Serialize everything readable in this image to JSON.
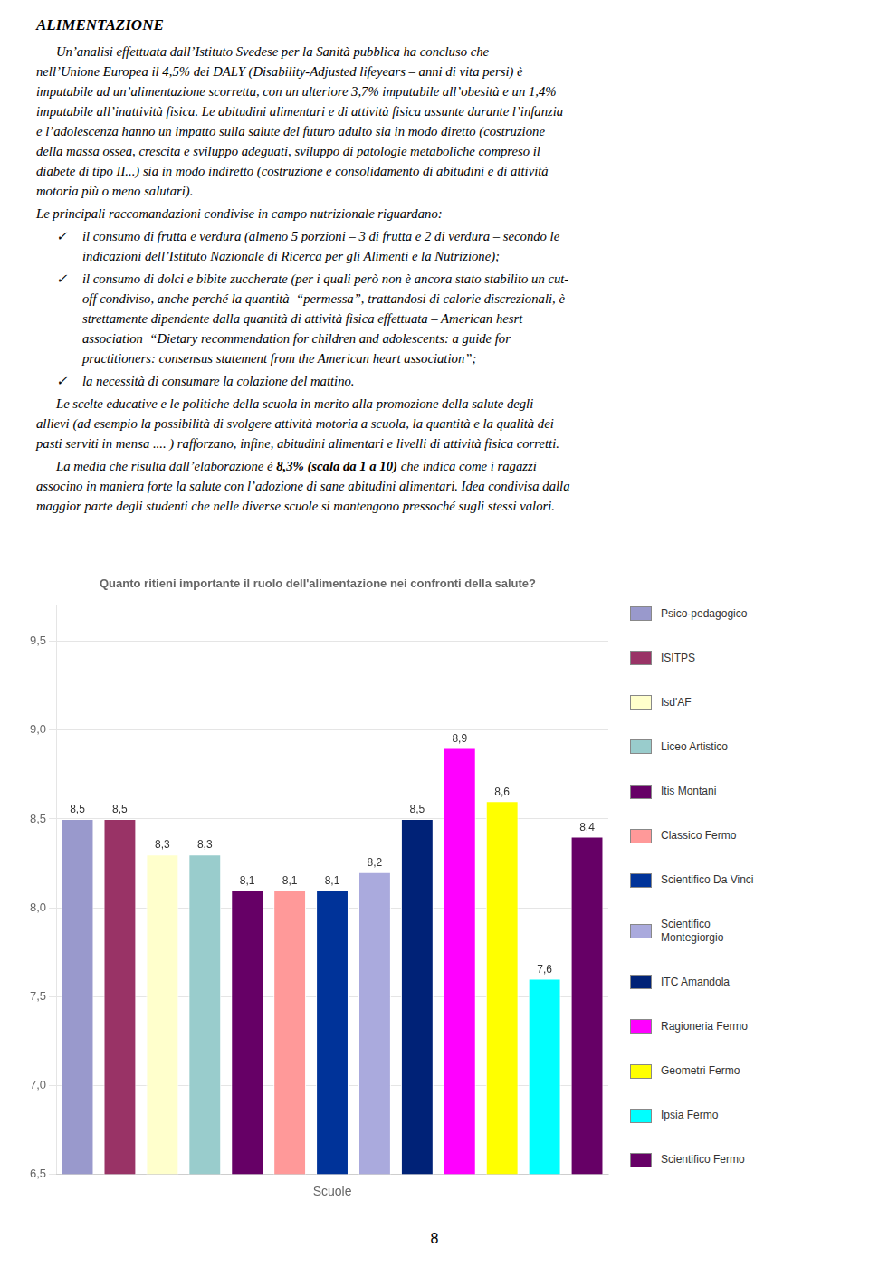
{
  "chart_data": {
    "type": "bar",
    "title": "Quanto ritieni importante il ruolo dell'alimentazione nei confronti della salute?",
    "xlabel": "Scuole",
    "categories": [
      "Psico-pedagogico",
      "ISITPS",
      "Isd'AF",
      "Liceo Artistico",
      "Itis Montani",
      "Classico Fermo",
      "Scientifico Da Vinci",
      "Scientifico\nMontegiorgio",
      "ITC Amandola",
      "Ragioneria Fermo",
      "Geometri Fermo",
      "Ipsia Fermo",
      "Scientifico Fermo"
    ],
    "values": [
      8.5,
      8.5,
      8.3,
      8.3,
      8.1,
      8.1,
      8.1,
      8.2,
      8.5,
      8.9,
      8.6,
      7.6,
      8.4
    ],
    "value_labels": [
      "8,5",
      "8,5",
      "8,3",
      "8,3",
      "8,1",
      "8,1",
      "8,1",
      "8,2",
      "8,5",
      "8,9",
      "8,6",
      "7,6",
      "8,4"
    ],
    "colors": [
      "#9999CC",
      "#993366",
      "#FFFFCC",
      "#99CCCC",
      "#660066",
      "#FF9999",
      "#003399",
      "#AAAADD",
      "#002277",
      "#FF00FF",
      "#FFFF00",
      "#00FFFF",
      "#660066"
    ],
    "ylim": [
      6.5,
      9.7
    ],
    "yticks": [
      {
        "value": 6.5,
        "label": "6,5"
      },
      {
        "value": 7.0,
        "label": "7,0"
      },
      {
        "value": 7.5,
        "label": "7,5"
      },
      {
        "value": 8.0,
        "label": "8,0"
      },
      {
        "value": 8.5,
        "label": "8,5"
      },
      {
        "value": 9.0,
        "label": "9,0"
      },
      {
        "value": 9.5,
        "label": "9,5"
      }
    ],
    "grid": true,
    "data_labels": true,
    "tick_labels": "y",
    "legend": "right"
  },
  "document": {
    "heading": "ALIMENTAZIONE",
    "blocks": [
      {
        "lines": [
          "Un’analisi effettuata dall’Istituto Svedese per la Sanità pubblica ha concluso che",
          "nell’Unione Europea il 4,5% dei DALY (Disability-Adjusted lifeyears – anni di vita persi) è",
          "imputabile ad un’alimentazione scorretta, con un ulteriore 3,7% imputabile all’obesità e un 1,4%",
          "imputabile all’inattività fisica. Le abitudini alimentari e di attività fisica assunte durante l’infanzia",
          "e l’adolescenza hanno un impatto sulla salute del futuro adulto sia in modo diretto (costruzione",
          "della massa ossea, crescita e sviluppo adeguati, sviluppo di patologie metaboliche compreso il",
          "diabete di tipo II...) sia in modo indiretto (costruzione e consolidamento di abitudini e di attività",
          "motoria più o meno salutari)."
        ]
      },
      {
        "lines": [
          "Le principali raccomandazioni condivise in campo nutrizionale riguardano:"
        ]
      },
      {
        "bullet": "✓",
        "lines": [
          "il consumo di frutta e verdura (almeno 5 porzioni – 3 di frutta e 2 di verdura – secondo le",
          "indicazioni dell’Istituto Nazionale di Ricerca per gli Alimenti e la Nutrizione);"
        ]
      },
      {
        "bullet": "✓",
        "lines": [
          "il consumo di dolci e bibite zuccherate (per i quali però non è ancora stato stabilito un cut-",
          "off condiviso, anche perché la quantità  “permessa”, trattandosi di calorie discrezionali, è",
          "strettamente dipendente dalla quantità di attività fisica effettuata – American hesrt",
          "association  “Dietary recommendation for children and adolescents: a guide for",
          "practitioners: consensus statement from the American heart association”;"
        ]
      },
      {
        "bullet": "✓",
        "lines": [
          "la necessità di consumare la colazione del mattino."
        ]
      },
      {
        "lines": [
          "Le scelte educative e le politiche della scuola in merito alla promozione della salute degli",
          "allievi (ad esempio la possibilità di svolgere attività motoria a scuola, la quantità e la qualità dei",
          "pasti serviti in mensa .... ) rafforzano, infine, abitudini alimentari e livelli di attività fisica corretti."
        ]
      },
      {
        "lines": [
          [
            {
              "text": "La media che risulta dall’elaborazione è "
            },
            {
              "text": "8,3% (scala da 1 a 10)",
              "bold": true
            },
            {
              "text": " che indica come i ragazzi"
            }
          ],
          "associno in maniera forte la salute con l’adozione di sane abitudini alimentari. Idea condivisa dalla",
          "maggior parte degli studenti che nelle diverse scuole si mantengono pressoché sugli stessi valori."
        ]
      }
    ],
    "page_number": "8"
  }
}
